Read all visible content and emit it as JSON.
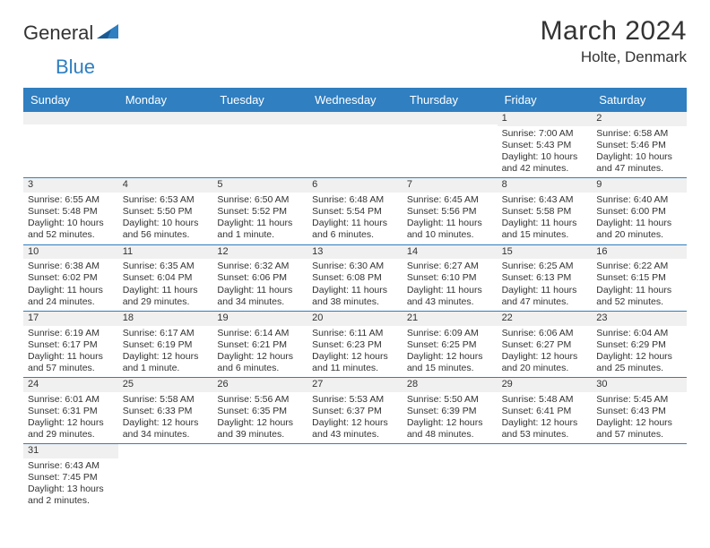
{
  "logo": {
    "text_a": "General",
    "text_b": "Blue"
  },
  "title": "March 2024",
  "location": "Holte, Denmark",
  "days_of_week": [
    "Sunday",
    "Monday",
    "Tuesday",
    "Wednesday",
    "Thursday",
    "Friday",
    "Saturday"
  ],
  "colors": {
    "header_bg": "#2f7fc1",
    "header_text": "#ffffff",
    "strip_bg": "#f0f0f0",
    "row_border": "#2f7fc1",
    "body_text": "#333333"
  },
  "weeks": [
    [
      null,
      null,
      null,
      null,
      null,
      {
        "n": "1",
        "sr": "Sunrise: 7:00 AM",
        "ss": "Sunset: 5:43 PM",
        "d1": "Daylight: 10 hours",
        "d2": "and 42 minutes."
      },
      {
        "n": "2",
        "sr": "Sunrise: 6:58 AM",
        "ss": "Sunset: 5:46 PM",
        "d1": "Daylight: 10 hours",
        "d2": "and 47 minutes."
      }
    ],
    [
      {
        "n": "3",
        "sr": "Sunrise: 6:55 AM",
        "ss": "Sunset: 5:48 PM",
        "d1": "Daylight: 10 hours",
        "d2": "and 52 minutes."
      },
      {
        "n": "4",
        "sr": "Sunrise: 6:53 AM",
        "ss": "Sunset: 5:50 PM",
        "d1": "Daylight: 10 hours",
        "d2": "and 56 minutes."
      },
      {
        "n": "5",
        "sr": "Sunrise: 6:50 AM",
        "ss": "Sunset: 5:52 PM",
        "d1": "Daylight: 11 hours",
        "d2": "and 1 minute."
      },
      {
        "n": "6",
        "sr": "Sunrise: 6:48 AM",
        "ss": "Sunset: 5:54 PM",
        "d1": "Daylight: 11 hours",
        "d2": "and 6 minutes."
      },
      {
        "n": "7",
        "sr": "Sunrise: 6:45 AM",
        "ss": "Sunset: 5:56 PM",
        "d1": "Daylight: 11 hours",
        "d2": "and 10 minutes."
      },
      {
        "n": "8",
        "sr": "Sunrise: 6:43 AM",
        "ss": "Sunset: 5:58 PM",
        "d1": "Daylight: 11 hours",
        "d2": "and 15 minutes."
      },
      {
        "n": "9",
        "sr": "Sunrise: 6:40 AM",
        "ss": "Sunset: 6:00 PM",
        "d1": "Daylight: 11 hours",
        "d2": "and 20 minutes."
      }
    ],
    [
      {
        "n": "10",
        "sr": "Sunrise: 6:38 AM",
        "ss": "Sunset: 6:02 PM",
        "d1": "Daylight: 11 hours",
        "d2": "and 24 minutes."
      },
      {
        "n": "11",
        "sr": "Sunrise: 6:35 AM",
        "ss": "Sunset: 6:04 PM",
        "d1": "Daylight: 11 hours",
        "d2": "and 29 minutes."
      },
      {
        "n": "12",
        "sr": "Sunrise: 6:32 AM",
        "ss": "Sunset: 6:06 PM",
        "d1": "Daylight: 11 hours",
        "d2": "and 34 minutes."
      },
      {
        "n": "13",
        "sr": "Sunrise: 6:30 AM",
        "ss": "Sunset: 6:08 PM",
        "d1": "Daylight: 11 hours",
        "d2": "and 38 minutes."
      },
      {
        "n": "14",
        "sr": "Sunrise: 6:27 AM",
        "ss": "Sunset: 6:10 PM",
        "d1": "Daylight: 11 hours",
        "d2": "and 43 minutes."
      },
      {
        "n": "15",
        "sr": "Sunrise: 6:25 AM",
        "ss": "Sunset: 6:13 PM",
        "d1": "Daylight: 11 hours",
        "d2": "and 47 minutes."
      },
      {
        "n": "16",
        "sr": "Sunrise: 6:22 AM",
        "ss": "Sunset: 6:15 PM",
        "d1": "Daylight: 11 hours",
        "d2": "and 52 minutes."
      }
    ],
    [
      {
        "n": "17",
        "sr": "Sunrise: 6:19 AM",
        "ss": "Sunset: 6:17 PM",
        "d1": "Daylight: 11 hours",
        "d2": "and 57 minutes."
      },
      {
        "n": "18",
        "sr": "Sunrise: 6:17 AM",
        "ss": "Sunset: 6:19 PM",
        "d1": "Daylight: 12 hours",
        "d2": "and 1 minute."
      },
      {
        "n": "19",
        "sr": "Sunrise: 6:14 AM",
        "ss": "Sunset: 6:21 PM",
        "d1": "Daylight: 12 hours",
        "d2": "and 6 minutes."
      },
      {
        "n": "20",
        "sr": "Sunrise: 6:11 AM",
        "ss": "Sunset: 6:23 PM",
        "d1": "Daylight: 12 hours",
        "d2": "and 11 minutes."
      },
      {
        "n": "21",
        "sr": "Sunrise: 6:09 AM",
        "ss": "Sunset: 6:25 PM",
        "d1": "Daylight: 12 hours",
        "d2": "and 15 minutes."
      },
      {
        "n": "22",
        "sr": "Sunrise: 6:06 AM",
        "ss": "Sunset: 6:27 PM",
        "d1": "Daylight: 12 hours",
        "d2": "and 20 minutes."
      },
      {
        "n": "23",
        "sr": "Sunrise: 6:04 AM",
        "ss": "Sunset: 6:29 PM",
        "d1": "Daylight: 12 hours",
        "d2": "and 25 minutes."
      }
    ],
    [
      {
        "n": "24",
        "sr": "Sunrise: 6:01 AM",
        "ss": "Sunset: 6:31 PM",
        "d1": "Daylight: 12 hours",
        "d2": "and 29 minutes."
      },
      {
        "n": "25",
        "sr": "Sunrise: 5:58 AM",
        "ss": "Sunset: 6:33 PM",
        "d1": "Daylight: 12 hours",
        "d2": "and 34 minutes."
      },
      {
        "n": "26",
        "sr": "Sunrise: 5:56 AM",
        "ss": "Sunset: 6:35 PM",
        "d1": "Daylight: 12 hours",
        "d2": "and 39 minutes."
      },
      {
        "n": "27",
        "sr": "Sunrise: 5:53 AM",
        "ss": "Sunset: 6:37 PM",
        "d1": "Daylight: 12 hours",
        "d2": "and 43 minutes."
      },
      {
        "n": "28",
        "sr": "Sunrise: 5:50 AM",
        "ss": "Sunset: 6:39 PM",
        "d1": "Daylight: 12 hours",
        "d2": "and 48 minutes."
      },
      {
        "n": "29",
        "sr": "Sunrise: 5:48 AM",
        "ss": "Sunset: 6:41 PM",
        "d1": "Daylight: 12 hours",
        "d2": "and 53 minutes."
      },
      {
        "n": "30",
        "sr": "Sunrise: 5:45 AM",
        "ss": "Sunset: 6:43 PM",
        "d1": "Daylight: 12 hours",
        "d2": "and 57 minutes."
      }
    ],
    [
      {
        "n": "31",
        "sr": "Sunrise: 6:43 AM",
        "ss": "Sunset: 7:45 PM",
        "d1": "Daylight: 13 hours",
        "d2": "and 2 minutes."
      },
      null,
      null,
      null,
      null,
      null,
      null
    ]
  ]
}
